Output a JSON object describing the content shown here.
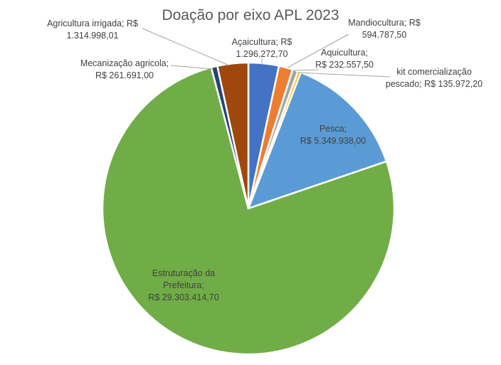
{
  "chart_data": {
    "type": "pie",
    "title": "Doação por eixo APL 2023",
    "slices": [
      {
        "name": "Açaicultura",
        "value": 1296272.7,
        "label_lines": [
          "Açaicultura; R$",
          "1.296.272,70"
        ],
        "color": "#4472C4"
      },
      {
        "name": "Mandiocultura",
        "value": 594787.5,
        "label_lines": [
          "Mandiocultura; R$",
          "594.787,50"
        ],
        "color": "#ED7D31"
      },
      {
        "name": "Aquicultura",
        "value": 232557.5,
        "label_lines": [
          "Aquicultura;",
          "R$ 232.557,50"
        ],
        "color": "#A5A5A5"
      },
      {
        "name": "kit comercialização pescado",
        "value": 135972.2,
        "label_lines": [
          "kit comercialização",
          "pescado; R$ 135.972,20"
        ],
        "color": "#FFC000"
      },
      {
        "name": "Pesca",
        "value": 5349938.0,
        "label_lines": [
          "Pesca;",
          "R$ 5.349.938,00"
        ],
        "color": "#5B9BD5"
      },
      {
        "name": "Estruturação da Prefeitura",
        "value": 29303414.7,
        "label_lines": [
          "Estruturação da",
          "Prefeitura;",
          "R$ 29.303.414,70"
        ],
        "color": "#70AD47"
      },
      {
        "name": "Mecanização agricola",
        "value": 261691.0,
        "label_lines": [
          "Mecanização agricola;",
          "R$ 261.691,00"
        ],
        "color": "#264478"
      },
      {
        "name": "Agricultura irrigada",
        "value": 1314998.01,
        "label_lines": [
          "Agricultura irrigada; R$",
          "1.314.998,01"
        ],
        "color": "#9E480E"
      }
    ],
    "start_angle_deg": 0,
    "direction": "clockwise",
    "legend": "none"
  }
}
